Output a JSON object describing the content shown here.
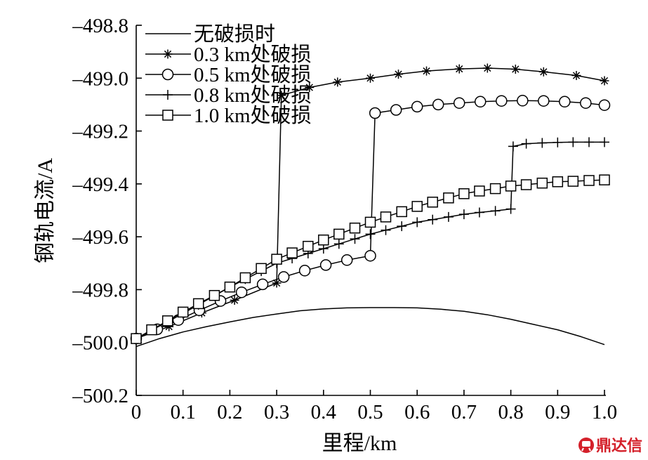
{
  "chart_data": {
    "type": "line",
    "title": "",
    "xlabel": "里程/km",
    "ylabel": "钢轨电流/A",
    "xlim": [
      0,
      1.0
    ],
    "ylim": [
      -500.2,
      -498.8
    ],
    "grid": false,
    "legend": "top-left",
    "line_color": "#000000",
    "xticks": [
      {
        "value": 0,
        "label": "0"
      },
      {
        "value": 0.1,
        "label": "0.1"
      },
      {
        "value": 0.2,
        "label": "0.2"
      },
      {
        "value": 0.3,
        "label": "0.3"
      },
      {
        "value": 0.4,
        "label": "0.4"
      },
      {
        "value": 0.5,
        "label": "0.5"
      },
      {
        "value": 0.6,
        "label": "0.6"
      },
      {
        "value": 0.7,
        "label": "0.7"
      },
      {
        "value": 0.8,
        "label": "0.8"
      },
      {
        "value": 0.9,
        "label": "0.9"
      },
      {
        "value": 1.0,
        "label": "1.0"
      }
    ],
    "yticks": [
      {
        "value": -498.8,
        "label": "–498.8"
      },
      {
        "value": -499.0,
        "label": "–499.0"
      },
      {
        "value": -499.2,
        "label": "–499.2"
      },
      {
        "value": -499.4,
        "label": "–499.4"
      },
      {
        "value": -499.6,
        "label": "–499.6"
      },
      {
        "value": -499.8,
        "label": "–499.8"
      },
      {
        "value": -500.0,
        "label": "–500.0"
      },
      {
        "value": -500.2,
        "label": "–500.2"
      }
    ],
    "series": [
      {
        "name": "无破损时",
        "marker": "none",
        "points": [
          [
            0,
            -500.015
          ],
          [
            0.05,
            -499.985
          ],
          [
            0.1,
            -499.96
          ],
          [
            0.15,
            -499.94
          ],
          [
            0.2,
            -499.922
          ],
          [
            0.25,
            -499.905
          ],
          [
            0.3,
            -499.892
          ],
          [
            0.35,
            -499.88
          ],
          [
            0.4,
            -499.873
          ],
          [
            0.45,
            -499.869
          ],
          [
            0.5,
            -499.868
          ],
          [
            0.55,
            -499.868
          ],
          [
            0.6,
            -499.869
          ],
          [
            0.65,
            -499.874
          ],
          [
            0.7,
            -499.882
          ],
          [
            0.75,
            -499.895
          ],
          [
            0.8,
            -499.912
          ],
          [
            0.85,
            -499.932
          ],
          [
            0.9,
            -499.952
          ],
          [
            0.95,
            -499.978
          ],
          [
            1.0,
            -500.008
          ]
        ]
      },
      {
        "name": "0.3 km处破损",
        "marker": "asterisk",
        "points": [
          [
            0,
            -499.985
          ],
          [
            0.07,
            -499.94
          ],
          [
            0.14,
            -499.888
          ],
          [
            0.21,
            -499.84
          ],
          [
            0.3,
            -499.775
          ],
          [
            0.31,
            -499.065
          ],
          [
            0.37,
            -499.035
          ],
          [
            0.43,
            -499.015
          ],
          [
            0.5,
            -499.0
          ],
          [
            0.56,
            -498.985
          ],
          [
            0.62,
            -498.973
          ],
          [
            0.69,
            -498.965
          ],
          [
            0.75,
            -498.962
          ],
          [
            0.81,
            -498.966
          ],
          [
            0.87,
            -498.976
          ],
          [
            0.94,
            -498.99
          ],
          [
            1.0,
            -499.01
          ]
        ]
      },
      {
        "name": "0.5 km处破损",
        "marker": "circle",
        "points": [
          [
            0,
            -499.985
          ],
          [
            0.045,
            -499.95
          ],
          [
            0.09,
            -499.915
          ],
          [
            0.135,
            -499.878
          ],
          [
            0.18,
            -499.843
          ],
          [
            0.225,
            -499.81
          ],
          [
            0.27,
            -499.78
          ],
          [
            0.315,
            -499.752
          ],
          [
            0.36,
            -499.728
          ],
          [
            0.405,
            -499.707
          ],
          [
            0.45,
            -499.688
          ],
          [
            0.5,
            -499.672
          ],
          [
            0.51,
            -499.132
          ],
          [
            0.555,
            -499.12
          ],
          [
            0.6,
            -499.108
          ],
          [
            0.645,
            -499.1
          ],
          [
            0.69,
            -499.094
          ],
          [
            0.735,
            -499.089
          ],
          [
            0.78,
            -499.086
          ],
          [
            0.825,
            -499.085
          ],
          [
            0.87,
            -499.086
          ],
          [
            0.915,
            -499.089
          ],
          [
            0.96,
            -499.094
          ],
          [
            1.0,
            -499.102
          ]
        ]
      },
      {
        "name": "0.8 km处破损",
        "marker": "plus",
        "points": [
          [
            0,
            -499.985
          ],
          [
            0.033,
            -499.953
          ],
          [
            0.067,
            -499.922
          ],
          [
            0.1,
            -499.89
          ],
          [
            0.133,
            -499.857
          ],
          [
            0.167,
            -499.823
          ],
          [
            0.2,
            -499.79
          ],
          [
            0.233,
            -499.76
          ],
          [
            0.267,
            -499.73
          ],
          [
            0.3,
            -499.7
          ],
          [
            0.333,
            -499.682
          ],
          [
            0.367,
            -499.663
          ],
          [
            0.4,
            -499.645
          ],
          [
            0.433,
            -499.627
          ],
          [
            0.467,
            -499.608
          ],
          [
            0.5,
            -499.59
          ],
          [
            0.533,
            -499.575
          ],
          [
            0.567,
            -499.56
          ],
          [
            0.6,
            -499.545
          ],
          [
            0.633,
            -499.535
          ],
          [
            0.667,
            -499.525
          ],
          [
            0.7,
            -499.515
          ],
          [
            0.733,
            -499.508
          ],
          [
            0.767,
            -499.502
          ],
          [
            0.8,
            -499.495
          ],
          [
            0.805,
            -499.258
          ],
          [
            0.833,
            -499.248
          ],
          [
            0.867,
            -499.245
          ],
          [
            0.9,
            -499.243
          ],
          [
            0.933,
            -499.242
          ],
          [
            0.967,
            -499.242
          ],
          [
            1.0,
            -499.242
          ]
        ]
      },
      {
        "name": "1.0 km处破损",
        "marker": "square",
        "points": [
          [
            0,
            -499.985
          ],
          [
            0.033,
            -499.952
          ],
          [
            0.067,
            -499.918
          ],
          [
            0.1,
            -499.885
          ],
          [
            0.133,
            -499.853
          ],
          [
            0.167,
            -499.822
          ],
          [
            0.2,
            -499.79
          ],
          [
            0.233,
            -499.755
          ],
          [
            0.267,
            -499.72
          ],
          [
            0.3,
            -499.685
          ],
          [
            0.333,
            -499.661
          ],
          [
            0.367,
            -499.636
          ],
          [
            0.4,
            -499.612
          ],
          [
            0.433,
            -499.59
          ],
          [
            0.467,
            -499.567
          ],
          [
            0.5,
            -499.545
          ],
          [
            0.533,
            -499.525
          ],
          [
            0.567,
            -499.505
          ],
          [
            0.6,
            -499.485
          ],
          [
            0.633,
            -499.469
          ],
          [
            0.667,
            -499.453
          ],
          [
            0.7,
            -499.437
          ],
          [
            0.733,
            -499.427
          ],
          [
            0.767,
            -499.418
          ],
          [
            0.8,
            -499.408
          ],
          [
            0.833,
            -499.403
          ],
          [
            0.867,
            -499.397
          ],
          [
            0.9,
            -499.392
          ],
          [
            0.933,
            -499.39
          ],
          [
            0.967,
            -499.387
          ],
          [
            1.0,
            -499.385
          ]
        ]
      }
    ]
  },
  "watermark": {
    "text": "鼎达信",
    "color": "#d4202a",
    "icon": "brand-logo-icon"
  }
}
